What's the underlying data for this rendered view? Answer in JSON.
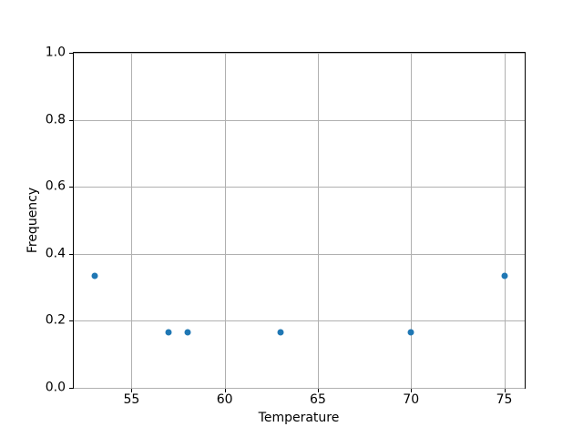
{
  "chart_data": {
    "type": "scatter",
    "title": "",
    "xlabel": "Temperature",
    "ylabel": "Frequency",
    "x": [
      53,
      57,
      58,
      63,
      70,
      75
    ],
    "y": [
      0.333,
      0.167,
      0.167,
      0.167,
      0.167,
      0.333
    ],
    "xlim": [
      51.9,
      76.1
    ],
    "ylim": [
      0.0,
      1.0
    ],
    "xticks": [
      {
        "value": 55,
        "label": "55"
      },
      {
        "value": 60,
        "label": "60"
      },
      {
        "value": 65,
        "label": "65"
      },
      {
        "value": 70,
        "label": "70"
      },
      {
        "value": 75,
        "label": "75"
      }
    ],
    "yticks": [
      {
        "value": 0.0,
        "label": "0.0"
      },
      {
        "value": 0.2,
        "label": "0.2"
      },
      {
        "value": 0.4,
        "label": "0.4"
      },
      {
        "value": 0.6,
        "label": "0.6"
      },
      {
        "value": 0.8,
        "label": "0.8"
      },
      {
        "value": 1.0,
        "label": "1.0"
      }
    ],
    "grid": true,
    "legend": false,
    "marker_color": "#1f77b4",
    "grid_color": "#b0b0b0",
    "axis_color": "#000000",
    "background": "#ffffff"
  }
}
